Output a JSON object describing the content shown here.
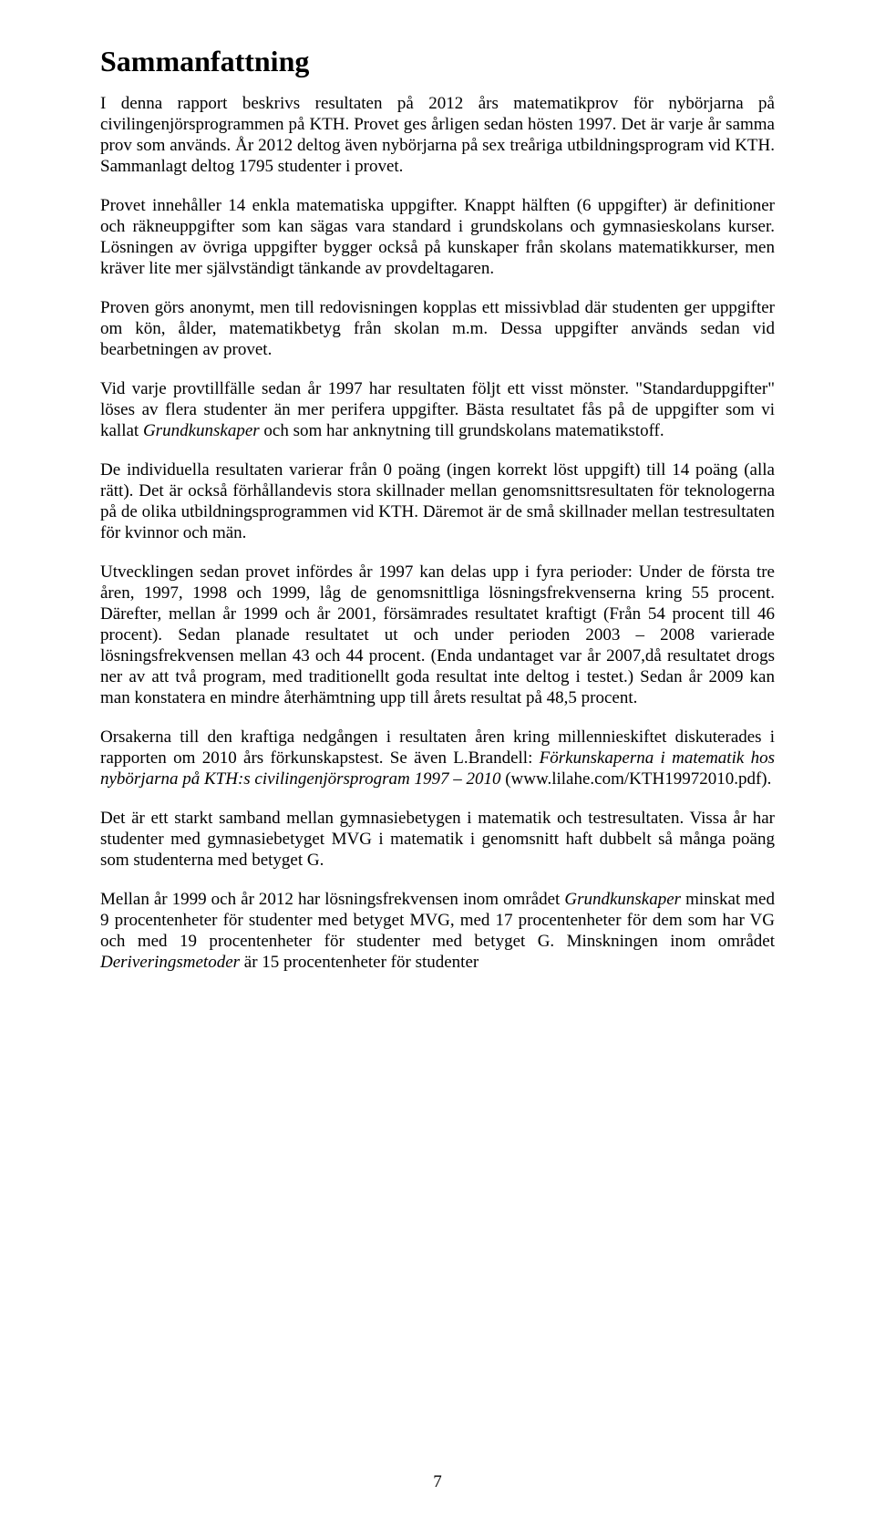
{
  "title": "Sammanfattning",
  "paragraphs": {
    "p1": "I denna rapport beskrivs resultaten på 2012 års matematikprov för nybörjarna på civilingenjörsprogrammen på KTH. Provet ges årligen sedan hösten 1997. Det är varje år samma prov som används. År 2012 deltog även nybörjarna på sex treåriga utbildningsprogram vid KTH. Sammanlagt deltog 1795 studenter i provet.",
    "p2": "Provet innehåller 14 enkla matematiska uppgifter. Knappt hälften (6 uppgifter) är definitioner och räkneuppgifter som kan sägas vara standard i grundskolans och gymnasieskolans kurser. Lösningen av övriga uppgifter bygger också på kunskaper från skolans matematikkurser, men kräver lite mer självständigt tänkande av provdeltagaren.",
    "p3": "Proven görs anonymt, men till redovisningen kopplas ett missivblad där studenten ger uppgifter om kön, ålder, matematikbetyg från skolan m.m. Dessa uppgifter används sedan vid bearbetningen av provet.",
    "p4a": "Vid varje provtillfälle sedan år 1997 har resultaten följt ett visst mönster. \"Standarduppgifter\" löses av flera studenter än mer perifera uppgifter. Bästa resultatet fås på de uppgifter som vi kallat ",
    "p4i": "Grundkunskaper",
    "p4b": " och som har anknytning till grundskolans matematikstoff.",
    "p5": "De individuella resultaten varierar från 0 poäng (ingen korrekt löst uppgift) till 14 poäng (alla rätt). Det är också förhållandevis stora skillnader mellan genomsnittsresultaten för teknologerna på de olika utbildningsprogrammen vid KTH. Däremot är de små skillnader mellan testresultaten för kvinnor och män.",
    "p6": "Utvecklingen sedan provet infördes år 1997 kan delas upp i fyra perioder: Under de första tre åren, 1997, 1998 och 1999, låg de genomsnittliga lösningsfrekvenserna kring 55 procent. Därefter, mellan år 1999 och år 2001, försämrades resultatet kraftigt (Från 54 procent till 46 procent). Sedan planade resultatet ut och under perioden 2003 – 2008 varierade lösningsfrekvensen mellan 43 och 44 procent. (Enda undantaget var år 2007,då resultatet drogs ner av att två program, med traditionellt goda resultat inte deltog i testet.) Sedan år 2009 kan man konstatera en mindre återhämtning upp till årets resultat på 48,5 procent.",
    "p7a": "Orsakerna till den kraftiga nedgången i resultaten åren kring millennieskiftet diskuterades i rapporten om 2010 års förkunskapstest. Se även L.Brandell: ",
    "p7i": "Förkunskaperna i matematik hos nybörjarna på KTH:s civilingenjörsprogram 1997 – 2010",
    "p7b": " (www.lilahe.com/KTH19972010.pdf).",
    "p8": "Det är ett starkt samband mellan gymnasiebetygen i matematik och testresultaten. Vissa år har studenter med gymnasiebetyget MVG i matematik i genomsnitt haft dubbelt så många poäng som studenterna med betyget G.",
    "p9a": "Mellan år 1999 och år 2012 har lösningsfrekvensen inom området ",
    "p9i1": "Grundkunskaper",
    "p9b": " minskat med 9 procentenheter för studenter med betyget MVG, med 17 procentenheter för dem som har VG och med 19 procentenheter för studenter med betyget G. Minskningen inom området ",
    "p9i2": "Deriveringsmetoder",
    "p9c": " är 15 procentenheter för studenter"
  },
  "page_number": "7"
}
